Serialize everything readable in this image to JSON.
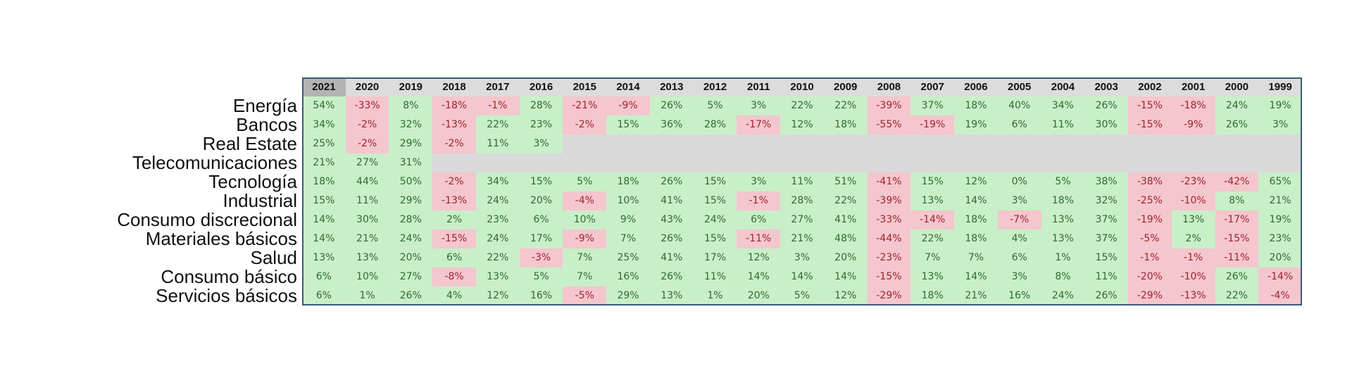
{
  "chart_data": {
    "type": "heatmap",
    "columns": [
      "2021",
      "2020",
      "2019",
      "2018",
      "2017",
      "2016",
      "2015",
      "2014",
      "2013",
      "2012",
      "2011",
      "2010",
      "2009",
      "2008",
      "2007",
      "2006",
      "2005",
      "2004",
      "2003",
      "2002",
      "2001",
      "2000",
      "1999"
    ],
    "rows": [
      "Energía",
      "Bancos",
      "Real Estate",
      "Telecomunicaciones",
      "Tecnología",
      "Industrial",
      "Consumo discrecional",
      "Materiales básicos",
      "Salud",
      "Consumo básico",
      "Servicios básicos"
    ],
    "values": [
      [
        "54%",
        "-33%",
        "8%",
        "-18%",
        "-1%",
        "28%",
        "-21%",
        "-9%",
        "26%",
        "5%",
        "3%",
        "22%",
        "22%",
        "-39%",
        "37%",
        "18%",
        "40%",
        "34%",
        "26%",
        "-15%",
        "-18%",
        "24%",
        "19%"
      ],
      [
        "34%",
        "-2%",
        "32%",
        "-13%",
        "22%",
        "23%",
        "-2%",
        "15%",
        "36%",
        "28%",
        "-17%",
        "12%",
        "18%",
        "-55%",
        "-19%",
        "19%",
        "6%",
        "11%",
        "30%",
        "-15%",
        "-9%",
        "26%",
        "3%"
      ],
      [
        "25%",
        "-2%",
        "29%",
        "-2%",
        "11%",
        "3%"
      ],
      [
        "21%",
        "27%",
        "31%"
      ],
      [
        "18%",
        "44%",
        "50%",
        "-2%",
        "34%",
        "15%",
        "5%",
        "18%",
        "26%",
        "15%",
        "3%",
        "11%",
        "51%",
        "-41%",
        "15%",
        "12%",
        "0%",
        "5%",
        "38%",
        "-38%",
        "-23%",
        "-42%",
        "65%"
      ],
      [
        "15%",
        "11%",
        "29%",
        "-13%",
        "24%",
        "20%",
        "-4%",
        "10%",
        "41%",
        "15%",
        "-1%",
        "28%",
        "22%",
        "-39%",
        "13%",
        "14%",
        "3%",
        "18%",
        "32%",
        "-25%",
        "-10%",
        "8%",
        "21%"
      ],
      [
        "14%",
        "30%",
        "28%",
        "2%",
        "23%",
        "6%",
        "10%",
        "9%",
        "43%",
        "24%",
        "6%",
        "27%",
        "41%",
        "-33%",
        "-14%",
        "18%",
        "-7%",
        "13%",
        "37%",
        "-19%",
        "13%",
        "-17%",
        "19%"
      ],
      [
        "14%",
        "21%",
        "24%",
        "-15%",
        "24%",
        "17%",
        "-9%",
        "7%",
        "26%",
        "15%",
        "-11%",
        "21%",
        "48%",
        "-44%",
        "22%",
        "18%",
        "4%",
        "13%",
        "37%",
        "-5%",
        "2%",
        "-15%",
        "23%"
      ],
      [
        "13%",
        "13%",
        "20%",
        "6%",
        "22%",
        "-3%",
        "7%",
        "25%",
        "41%",
        "17%",
        "12%",
        "3%",
        "20%",
        "-23%",
        "7%",
        "7%",
        "6%",
        "1%",
        "15%",
        "-1%",
        "-1%",
        "-11%",
        "20%"
      ],
      [
        "6%",
        "10%",
        "27%",
        "-8%",
        "13%",
        "5%",
        "7%",
        "16%",
        "26%",
        "11%",
        "14%",
        "14%",
        "14%",
        "-15%",
        "13%",
        "14%",
        "3%",
        "8%",
        "11%",
        "-20%",
        "-10%",
        "26%",
        "-14%"
      ],
      [
        "6%",
        "1%",
        "26%",
        "4%",
        "12%",
        "16%",
        "-5%",
        "29%",
        "13%",
        "1%",
        "20%",
        "5%",
        "12%",
        "-29%",
        "18%",
        "21%",
        "16%",
        "24%",
        "26%",
        "-29%",
        "-13%",
        "22%",
        "-4%"
      ]
    ],
    "colors": {
      "positive_bg": "#c9efc9",
      "positive_text": "#2e6b2e",
      "negative_bg": "#f4c6cd",
      "negative_text": "#a1232f",
      "empty_bg": "#d9d9d9",
      "header_bg": "#dcdcdc",
      "header_first_bg": "#b3b3b3"
    }
  }
}
